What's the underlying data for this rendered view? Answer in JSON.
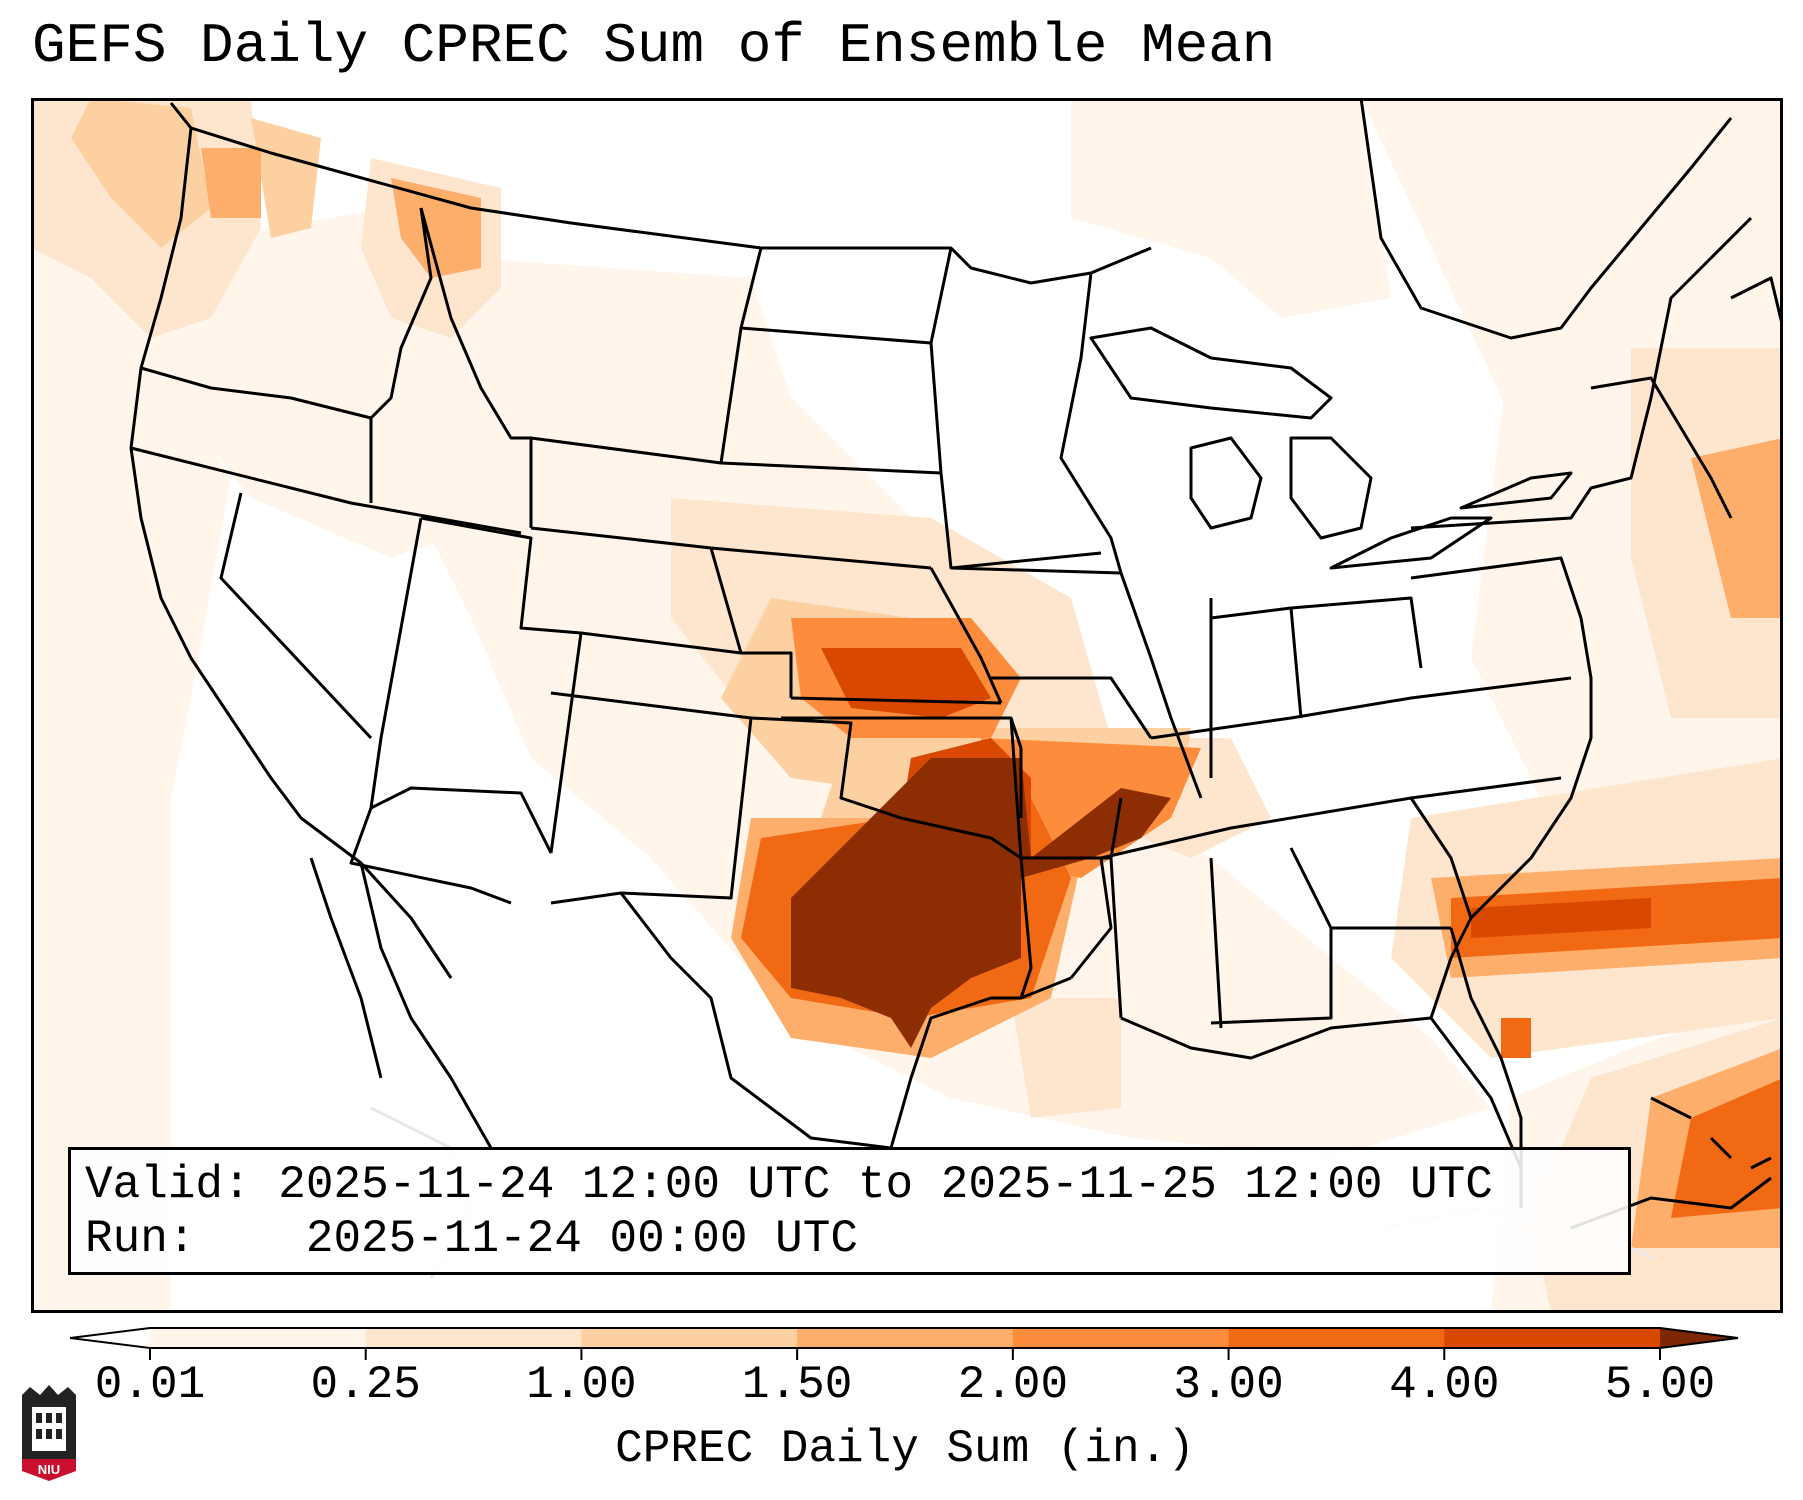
{
  "title": "GEFS Daily CPREC Sum of Ensemble Mean",
  "info": {
    "valid_label": "Valid:",
    "valid_value": "2025-11-24 12:00 UTC to 2025-11-25 12:00 UTC",
    "run_label": "Run:",
    "run_value": "2025-11-24 00:00 UTC"
  },
  "colorbar": {
    "label": "CPREC Daily Sum (in.)",
    "ticks": [
      "0.01",
      "0.25",
      "1.00",
      "1.50",
      "2.00",
      "3.00",
      "4.00",
      "5.00"
    ],
    "colors": [
      "#fff5eb",
      "#fee6ce",
      "#fdd0a2",
      "#fdae6b",
      "#fd8d3c",
      "#f16913",
      "#d94801",
      "#8c2d04"
    ],
    "under_color": "#ffffff",
    "over_color": "#7f2704"
  },
  "logo": {
    "text": "NIU",
    "color": "#c8102e"
  },
  "map": {
    "background": "#ffffff",
    "border_color": "#000000"
  }
}
